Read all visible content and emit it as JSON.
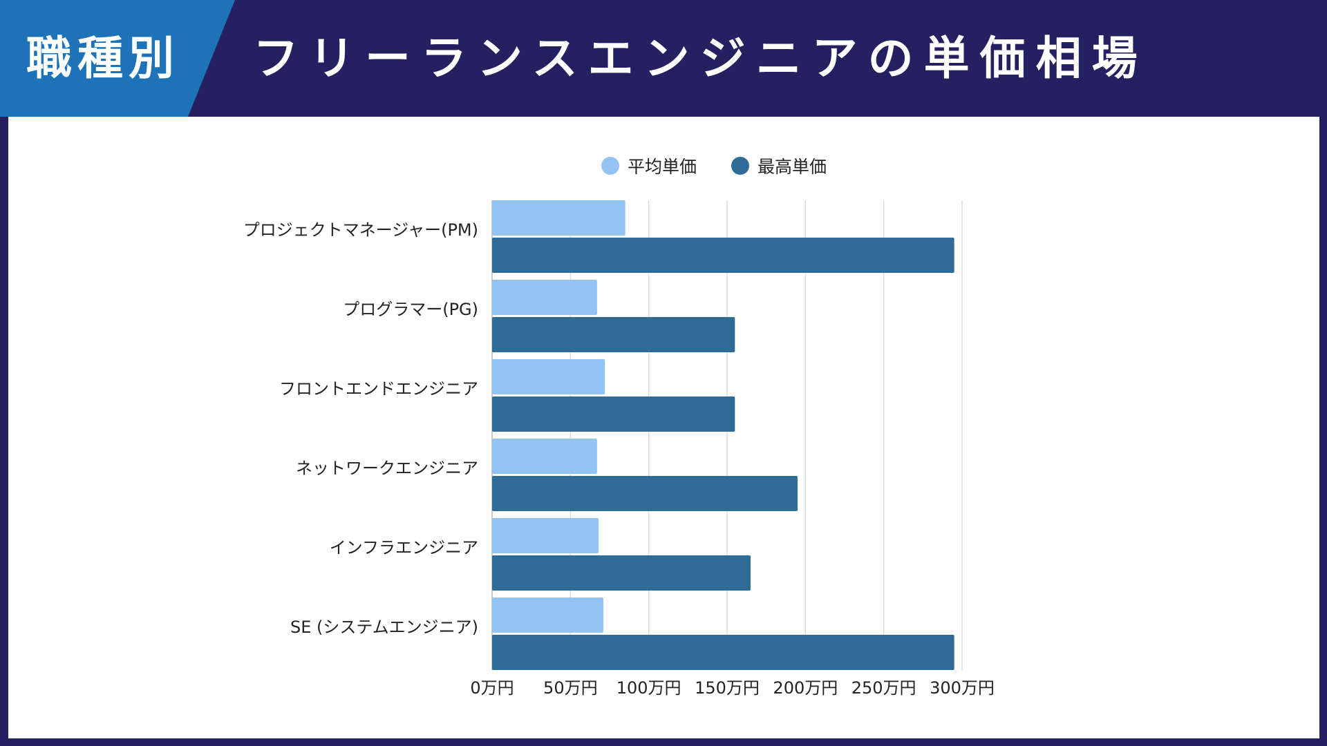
{
  "header": {
    "badge": "職種別",
    "title": "フリーランスエンジニアの単価相場"
  },
  "colors": {
    "background": "#252060",
    "badge": "#1d72b8",
    "panel": "#ffffff",
    "series_avg": "#93c3f2",
    "series_max": "#2e6b95",
    "grid": "#dddddd"
  },
  "chart_data": {
    "type": "bar",
    "orientation": "horizontal",
    "categories": [
      "プロジェクトマネージャー(PM)",
      "プログラマー(PG)",
      "フロントエンドエンジニア",
      "ネットワークエンジニア",
      "インフラエンジニア",
      "SE (システムエンジニア)"
    ],
    "series": [
      {
        "name": "平均単価",
        "values": [
          85,
          67,
          72,
          67,
          68,
          71
        ]
      },
      {
        "name": "最高単価",
        "values": [
          295,
          155,
          155,
          195,
          165,
          295
        ]
      }
    ],
    "unit": "万円",
    "xlim": [
      0,
      300
    ],
    "ticks": [
      "0万円",
      "50万円",
      "100万円",
      "150万円",
      "200万円",
      "250万円",
      "300万円"
    ],
    "legend_position": "top",
    "grid": "vertical"
  }
}
